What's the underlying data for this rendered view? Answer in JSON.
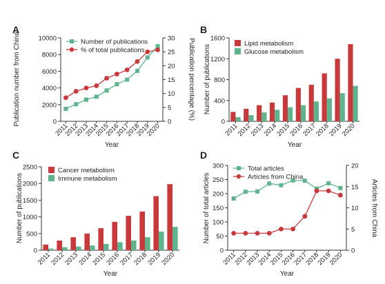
{
  "colors": {
    "red": "#c8393b",
    "green": "#5fb38d",
    "axis": "#333333"
  },
  "chart_data": [
    {
      "panel": "A",
      "type": "line",
      "categories": [
        "2011",
        "2012",
        "2013",
        "2014",
        "2015",
        "2016",
        "2017",
        "2018",
        "2019",
        "2020"
      ],
      "xlabel": "Year",
      "ylabel": "Publication number from China",
      "y2label": "Publication percentage (%)",
      "ylim": [
        0,
        10000
      ],
      "yticks": [
        0,
        2000,
        4000,
        6000,
        8000,
        10000
      ],
      "ytick_labels": [
        "0",
        "2000",
        "4000",
        "6000",
        "8000",
        "10000"
      ],
      "y2lim": [
        0,
        30
      ],
      "y2ticks": [
        0,
        5,
        10,
        15,
        20,
        25,
        30
      ],
      "legend_position": "top-left",
      "series": [
        {
          "name": "Number of publications",
          "axis": "left",
          "marker": "square",
          "color_key": "green",
          "values": [
            1500,
            2050,
            2600,
            2950,
            3700,
            4450,
            5000,
            6050,
            7650,
            9000
          ]
        },
        {
          "name": "% of total publications",
          "axis": "right",
          "marker": "circle",
          "color_key": "red",
          "values": [
            8.5,
            10.8,
            12.0,
            12.8,
            15.5,
            17.0,
            18.5,
            21.5,
            25.0,
            25.7
          ]
        }
      ]
    },
    {
      "panel": "B",
      "type": "bar",
      "categories": [
        "2011",
        "2012",
        "2013",
        "2014",
        "2015",
        "2016",
        "2017",
        "2018",
        "2019",
        "2020"
      ],
      "xlabel": "Year",
      "ylabel": "Number of publications",
      "ylim": [
        0,
        1600
      ],
      "yticks": [
        0,
        400,
        800,
        1200,
        1600
      ],
      "legend_position": "top-left",
      "series": [
        {
          "name": "Lipid metabolism",
          "color_key": "red",
          "values": [
            180,
            240,
            310,
            360,
            500,
            640,
            700,
            920,
            1200,
            1480
          ]
        },
        {
          "name": "Glucose metabolism",
          "color_key": "green",
          "values": [
            80,
            120,
            170,
            220,
            270,
            310,
            380,
            440,
            540,
            680
          ]
        }
      ]
    },
    {
      "panel": "C",
      "type": "bar",
      "categories": [
        "2011",
        "2012",
        "2013",
        "2014",
        "2015",
        "2016",
        "2017",
        "2018",
        "2019",
        "2020"
      ],
      "xlabel": "Year",
      "ylabel": "Number of publications",
      "ylim": [
        0,
        2500
      ],
      "yticks": [
        0,
        500,
        1000,
        1500,
        2000,
        2500
      ],
      "legend_position": "top-left",
      "series": [
        {
          "name": "Cancer metabolism",
          "color_key": "red",
          "values": [
            170,
            290,
            390,
            500,
            660,
            850,
            1030,
            1160,
            1620,
            1980
          ]
        },
        {
          "name": "Immune metabolism",
          "color_key": "green",
          "values": [
            50,
            90,
            110,
            140,
            190,
            240,
            290,
            390,
            560,
            700
          ]
        }
      ]
    },
    {
      "panel": "D",
      "type": "line",
      "categories": [
        "2011",
        "2012",
        "2013",
        "2014",
        "2015",
        "2016",
        "2017",
        "2018",
        "2019",
        "2020"
      ],
      "xlabel": "Year",
      "ylabel": "Number of total articles",
      "y2label": "Articles from China",
      "ylim": [
        0,
        300
      ],
      "yticks": [
        0,
        50,
        100,
        150,
        200,
        250,
        300
      ],
      "y2lim": [
        0,
        20
      ],
      "y2ticks": [
        0,
        5,
        10,
        15,
        20
      ],
      "legend_position": "top-left",
      "series": [
        {
          "name": "Total articles",
          "axis": "left",
          "marker": "square",
          "color_key": "green",
          "values": [
            183,
            207,
            208,
            236,
            230,
            247,
            246,
            218,
            237,
            220
          ]
        },
        {
          "name": "Articles from China",
          "axis": "right",
          "marker": "circle",
          "color_key": "red",
          "values": [
            4,
            4,
            4,
            4,
            5,
            5,
            8,
            14,
            14,
            13
          ]
        }
      ]
    }
  ]
}
